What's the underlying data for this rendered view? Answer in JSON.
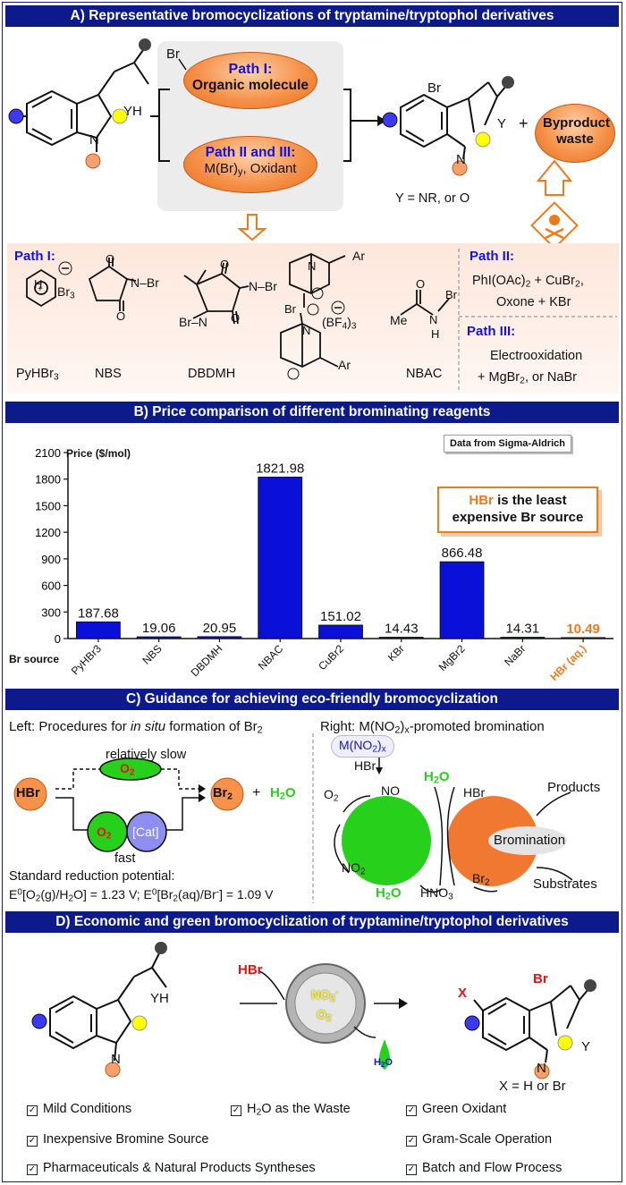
{
  "sectionA": {
    "title": "A) Representative bromocyclizations of tryptamine/tryptophol derivatives",
    "sm_label_yh": "YH",
    "sm_label_n": "N",
    "br_top": "Br",
    "path1_title": "Path I:",
    "path1_sub": "Organic molecule",
    "path23_title": "Path II and III:",
    "path23_sub": "M(Br)y, Oxidant",
    "product_br": "Br",
    "product_y": "Y",
    "product_n": "N",
    "plus": "+",
    "byproduct": "Byproduct waste",
    "y_note": "Y = NR, or O",
    "reagents_path1": "Path I:",
    "reagents": [
      "PyHBr3",
      "NBS",
      "DBDMH",
      "NBAC"
    ],
    "path2_title": "Path II:",
    "path2_text_1": "PhI(OAc)2 + CuBr2,",
    "path2_text_2": "Oxone + KBr",
    "path3_title": "Path III:",
    "path3_text_1": "Electrooxidation",
    "path3_text_2": "+ MgBr2, or NaBr"
  },
  "sectionB": {
    "title": "B) Price comparison of different brominating reagents",
    "source_note": "Data from Sigma-Aldrich",
    "cheap_note_hl": "HBr",
    "cheap_note_1": " is the least",
    "cheap_note_2": "expensive Br source"
  },
  "chart_data": {
    "type": "bar",
    "title": "",
    "ylabel": "Price ($/mol)",
    "xlabel": "Br source",
    "ylim": [
      0,
      2100
    ],
    "yticks": [
      0,
      300,
      600,
      900,
      1200,
      1500,
      1800,
      2100
    ],
    "categories": [
      "PyHBr3",
      "NBS",
      "DBDMH",
      "NBAC",
      "CuBr2",
      "KBr",
      "MgBr2",
      "NaBr",
      "HBr (aq.)"
    ],
    "values": [
      187.68,
      19.06,
      20.95,
      1821.98,
      151.02,
      14.43,
      866.48,
      14.31,
      10.49
    ],
    "value_labels": [
      "187.68",
      "19.06",
      "20.95",
      "1821.98",
      "151.02",
      "14.43",
      "866.48",
      "14.31",
      "10.49"
    ],
    "bar_color": "#0a10d8",
    "highlight_color": "#ee7a1e",
    "highlight_index": 8
  },
  "sectionC": {
    "title": "C) Guidance for achieving eco-friendly bromocyclization",
    "left_title_1": "Left: Procedures for ",
    "left_title_em": "in situ",
    "left_title_2": " formation of Br2",
    "slow": "relatively slow",
    "fast": "fast",
    "o2": "O2",
    "cat": "[Cat]",
    "hbr": "HBr",
    "br2": "Br2",
    "plus": "+",
    "h2o": "H2O",
    "std_title": "Standard reduction potential:",
    "std_values": "E0[O2(g)/H2O] = 1.23 V; E0[Br2(aq)/Br-] = 1.09 V",
    "right_title": "Right: M(NO2)x-promoted bromination",
    "m_no2": "M(NO2)x",
    "hbr_in": "HBr",
    "o2_in": "O2",
    "no": "NO",
    "h2o_top": "H2O",
    "no2": "NO2",
    "h2o_bot": "H2O",
    "hno3": "HNO3",
    "hbr_right": "HBr",
    "br2_right": "Br2",
    "products": "Products",
    "bromination": "Bromination",
    "substrates": "Substrates"
  },
  "sectionD": {
    "title": "D) Economic and green bromocyclization of tryptamine/tryptophol derivatives",
    "hbr": "HBr",
    "no2minus": "NO2-",
    "o2": "O2",
    "h2o": "H2O",
    "x_label": "X",
    "br_label": "Br",
    "x_note": "X = H or Br",
    "features": [
      "Mild Conditions",
      "H2O as the Waste",
      "Green Oxidant",
      "Inexpensive Bromine Source",
      "Gram-Scale Operation",
      "Pharmaceuticals & Natural  Products Syntheses",
      "Batch and Flow Process"
    ]
  }
}
